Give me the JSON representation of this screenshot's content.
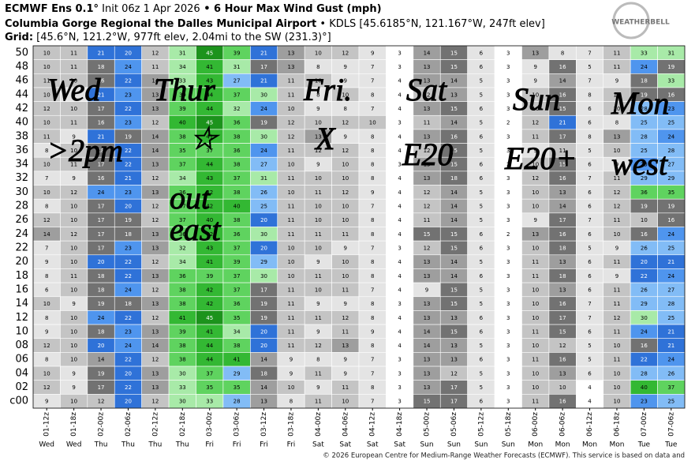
{
  "chart_data": {
    "type": "heatmap",
    "title": {
      "p1": "ECMWF Ens 0.1°",
      "p2": " Init 06z 1 Apr 2026",
      "p3": " • 6 Hour Max Wind Gust (mph)"
    },
    "subtitle": {
      "p1": "Columbia Gorge Regional the Dalles Municipal Airport",
      "p2": " • KDLS [45.6185°N, 121.167°W, 247ft elev]"
    },
    "grid_info": {
      "p1": "Grid:",
      "p2": " [45.6°N, 121.2°W, 977ft elev, 2.04mi to the SW (231.3)°]"
    },
    "logo": "WEATHERBELL",
    "footer": "© 2026 European Centre for Medium-Range Weather Forecasts (ECMWF). This service is based on data and",
    "categories": [
      "01-12z",
      "01-18z",
      "02-00z",
      "02-06z",
      "02-12z",
      "02-18z",
      "03-00z",
      "03-06z",
      "03-12z",
      "03-18z",
      "04-00z",
      "04-06z",
      "04-12z",
      "04-18z",
      "05-00z",
      "05-06z",
      "05-12z",
      "05-18z",
      "06-00z",
      "06-06z",
      "06-12z",
      "06-18z",
      "07-00z",
      "07-06z"
    ],
    "day_labels": [
      "Wed",
      "Wed",
      "Thu",
      "Thu",
      "Thu",
      "Thu",
      "Fri",
      "Fri",
      "Fri",
      "Fri",
      "Sat",
      "Sat",
      "Sat",
      "Sat",
      "Sun",
      "Sun",
      "Sun",
      "Sun",
      "Mon",
      "Mon",
      "Mon",
      "Mon",
      "Tue",
      "Tue"
    ],
    "rows": [
      "50",
      "48",
      "46",
      "44",
      "42",
      "40",
      "38",
      "36",
      "34",
      "32",
      "30",
      "28",
      "26",
      "24",
      "22",
      "20",
      "18",
      "16",
      "14",
      "12",
      "10",
      "08",
      "06",
      "04",
      "02",
      "c00"
    ],
    "values": [
      [
        10,
        11,
        21,
        20,
        12,
        31,
        45,
        39,
        21,
        13,
        10,
        12,
        9,
        3,
        14,
        15,
        6,
        3,
        13,
        8,
        7,
        11,
        33,
        31
      ],
      [
        10,
        11,
        18,
        24,
        11,
        34,
        41,
        31,
        17,
        13,
        8,
        9,
        7,
        3,
        13,
        15,
        6,
        3,
        9,
        16,
        5,
        11,
        24,
        19
      ],
      [
        11,
        10,
        16,
        22,
        14,
        33,
        43,
        27,
        21,
        11,
        10,
        9,
        7,
        4,
        13,
        14,
        5,
        3,
        9,
        14,
        7,
        9,
        18,
        33
      ],
      [
        10,
        9,
        21,
        23,
        13,
        39,
        44,
        37,
        30,
        11,
        8,
        10,
        8,
        4,
        12,
        13,
        5,
        3,
        10,
        16,
        8,
        11,
        19,
        16
      ],
      [
        12,
        10,
        17,
        22,
        13,
        39,
        44,
        32,
        24,
        10,
        9,
        8,
        7,
        4,
        13,
        15,
        6,
        3,
        10,
        15,
        6,
        10,
        28,
        23
      ],
      [
        10,
        11,
        16,
        23,
        12,
        40,
        45,
        36,
        19,
        12,
        10,
        12,
        10,
        3,
        11,
        14,
        5,
        2,
        12,
        21,
        6,
        8,
        25,
        25
      ],
      [
        11,
        9,
        21,
        19,
        14,
        38,
        41,
        38,
        30,
        12,
        13,
        9,
        8,
        4,
        13,
        16,
        6,
        3,
        11,
        17,
        8,
        13,
        28,
        24
      ],
      [
        8,
        10,
        18,
        22,
        14,
        35,
        37,
        36,
        24,
        11,
        12,
        12,
        8,
        4,
        12,
        15,
        5,
        3,
        9,
        11,
        5,
        10,
        25,
        28
      ],
      [
        10,
        11,
        17,
        22,
        13,
        37,
        44,
        38,
        27,
        10,
        9,
        10,
        8,
        3,
        13,
        15,
        6,
        2,
        10,
        15,
        6,
        9,
        23,
        27
      ],
      [
        7,
        9,
        16,
        21,
        12,
        34,
        43,
        37,
        31,
        11,
        10,
        10,
        8,
        4,
        13,
        18,
        6,
        3,
        12,
        16,
        7,
        11,
        29,
        29
      ],
      [
        10,
        12,
        24,
        23,
        13,
        36,
        42,
        38,
        26,
        10,
        11,
        12,
        9,
        4,
        12,
        14,
        5,
        3,
        10,
        13,
        6,
        12,
        36,
        35
      ],
      [
        8,
        10,
        17,
        20,
        12,
        37,
        42,
        40,
        25,
        11,
        10,
        10,
        7,
        4,
        12,
        14,
        5,
        3,
        10,
        14,
        6,
        12,
        19,
        19
      ],
      [
        12,
        10,
        17,
        19,
        12,
        37,
        40,
        38,
        20,
        11,
        10,
        10,
        8,
        4,
        11,
        14,
        5,
        3,
        9,
        17,
        7,
        11,
        10,
        16
      ],
      [
        14,
        12,
        17,
        18,
        13,
        36,
        42,
        36,
        30,
        11,
        11,
        11,
        8,
        4,
        15,
        15,
        6,
        2,
        13,
        16,
        6,
        10,
        16,
        24
      ],
      [
        7,
        10,
        17,
        23,
        13,
        32,
        43,
        37,
        20,
        10,
        10,
        9,
        7,
        3,
        12,
        15,
        6,
        3,
        10,
        18,
        5,
        9,
        26,
        25
      ],
      [
        9,
        10,
        20,
        22,
        12,
        34,
        41,
        39,
        29,
        10,
        9,
        10,
        8,
        4,
        13,
        14,
        5,
        3,
        11,
        13,
        6,
        11,
        20,
        21
      ],
      [
        8,
        11,
        18,
        22,
        13,
        36,
        39,
        37,
        30,
        10,
        11,
        10,
        8,
        4,
        13,
        14,
        6,
        3,
        11,
        18,
        6,
        9,
        22,
        24
      ],
      [
        6,
        10,
        18,
        24,
        12,
        38,
        42,
        37,
        17,
        11,
        10,
        11,
        7,
        4,
        9,
        15,
        5,
        3,
        10,
        13,
        6,
        11,
        26,
        27
      ],
      [
        10,
        9,
        19,
        18,
        13,
        38,
        42,
        36,
        19,
        11,
        9,
        9,
        8,
        3,
        13,
        15,
        5,
        3,
        10,
        16,
        7,
        11,
        29,
        28
      ],
      [
        8,
        10,
        24,
        22,
        12,
        41,
        45,
        35,
        19,
        11,
        11,
        12,
        8,
        4,
        13,
        13,
        6,
        3,
        10,
        17,
        7,
        12,
        30,
        25
      ],
      [
        9,
        10,
        18,
        23,
        13,
        39,
        41,
        34,
        20,
        11,
        9,
        11,
        9,
        4,
        14,
        15,
        6,
        3,
        11,
        15,
        6,
        11,
        24,
        21
      ],
      [
        12,
        10,
        20,
        24,
        14,
        38,
        44,
        38,
        20,
        11,
        12,
        13,
        8,
        4,
        14,
        13,
        5,
        3,
        10,
        12,
        5,
        10,
        16,
        21
      ],
      [
        8,
        10,
        14,
        22,
        12,
        38,
        44,
        41,
        14,
        9,
        8,
        9,
        7,
        3,
        13,
        13,
        6,
        3,
        11,
        16,
        5,
        11,
        22,
        24
      ],
      [
        10,
        9,
        19,
        20,
        13,
        30,
        37,
        29,
        18,
        9,
        11,
        9,
        7,
        3,
        13,
        12,
        5,
        3,
        10,
        13,
        6,
        10,
        28,
        26
      ],
      [
        12,
        9,
        17,
        22,
        13,
        33,
        35,
        35,
        14,
        10,
        9,
        11,
        8,
        3,
        13,
        17,
        5,
        3,
        10,
        10,
        4,
        10,
        40,
        37
      ],
      [
        9,
        10,
        12,
        20,
        12,
        30,
        33,
        28,
        13,
        8,
        11,
        10,
        7,
        3,
        15,
        17,
        6,
        3,
        11,
        16,
        4,
        10,
        23,
        25
      ]
    ],
    "color_scale": [
      {
        "min": 0,
        "color": "#ffffff"
      },
      {
        "min": 5,
        "color": "#e4e4e4"
      },
      {
        "min": 10,
        "color": "#c4c4c4"
      },
      {
        "min": 13,
        "color": "#9e9e9e"
      },
      {
        "min": 15,
        "color": "#727272"
      },
      {
        "min": 20,
        "color": "#2f72d8"
      },
      {
        "min": 23,
        "color": "#4f95ee"
      },
      {
        "min": 25,
        "color": "#82bcf6"
      },
      {
        "min": 30,
        "color": "#a8eaa8"
      },
      {
        "min": 35,
        "color": "#5fd35f"
      },
      {
        "min": 40,
        "color": "#33b833"
      },
      {
        "min": 45,
        "color": "#1c931c"
      }
    ],
    "annotations": [
      "Wed",
      "Thur",
      "Fri.",
      "Sat",
      "Sun",
      "Mon",
      ">2pm",
      "☆",
      "X",
      "E20",
      "E20+",
      "west",
      "out",
      "east"
    ]
  }
}
